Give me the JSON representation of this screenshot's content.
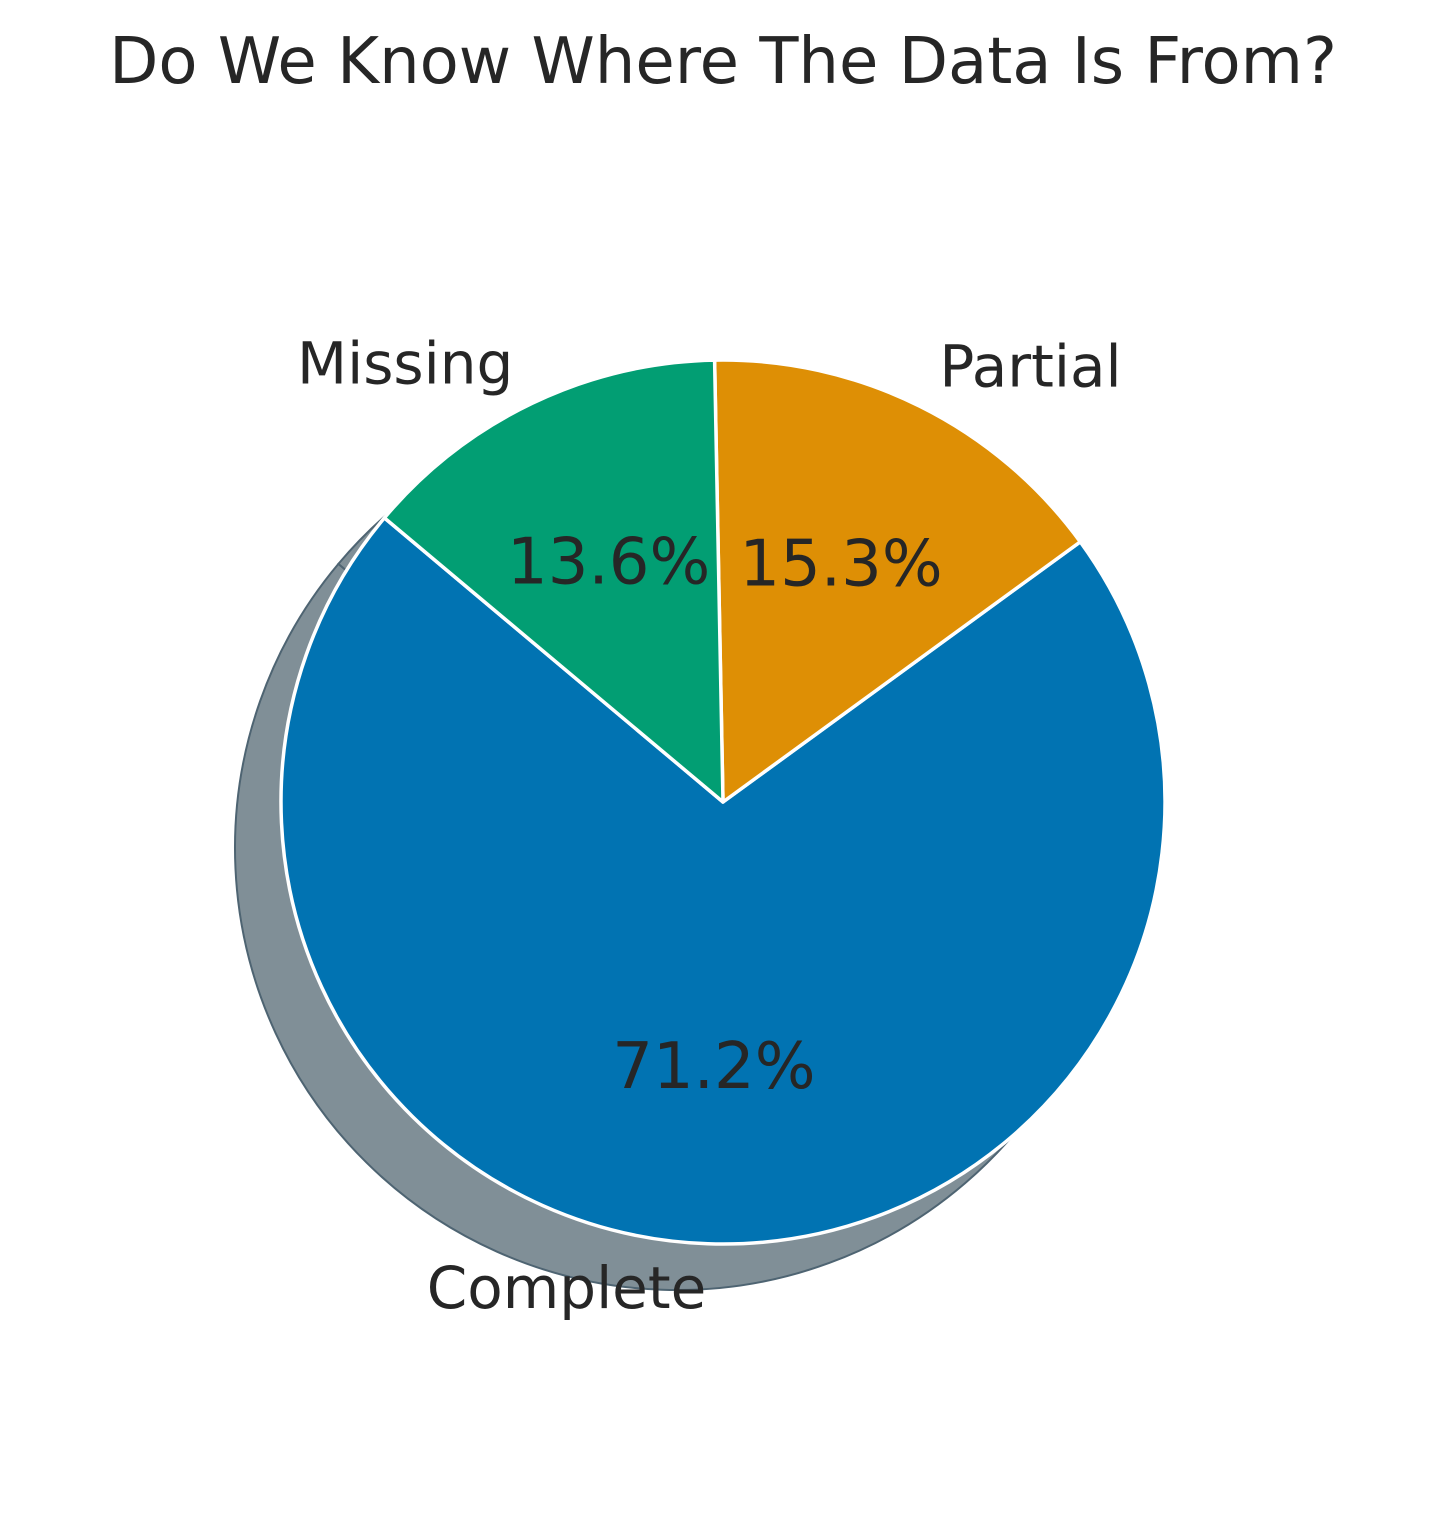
{
  "chart_data": {
    "type": "pie",
    "title": "Do We Know Where The Data Is From?",
    "slices": [
      {
        "label": "Complete",
        "value": 71.2,
        "pct_label": "71.2%",
        "color": "#0173b2"
      },
      {
        "label": "Partial",
        "value": 15.3,
        "pct_label": "15.3%",
        "color": "#de8f05"
      },
      {
        "label": "Missing",
        "value": 13.6,
        "pct_label": "13.6%",
        "color": "#029e73"
      }
    ],
    "start_angle_deg": 140,
    "direction": "counterclockwise",
    "shadow": true,
    "shadow_color": "#808f97",
    "edge_color": "#ffffff"
  }
}
